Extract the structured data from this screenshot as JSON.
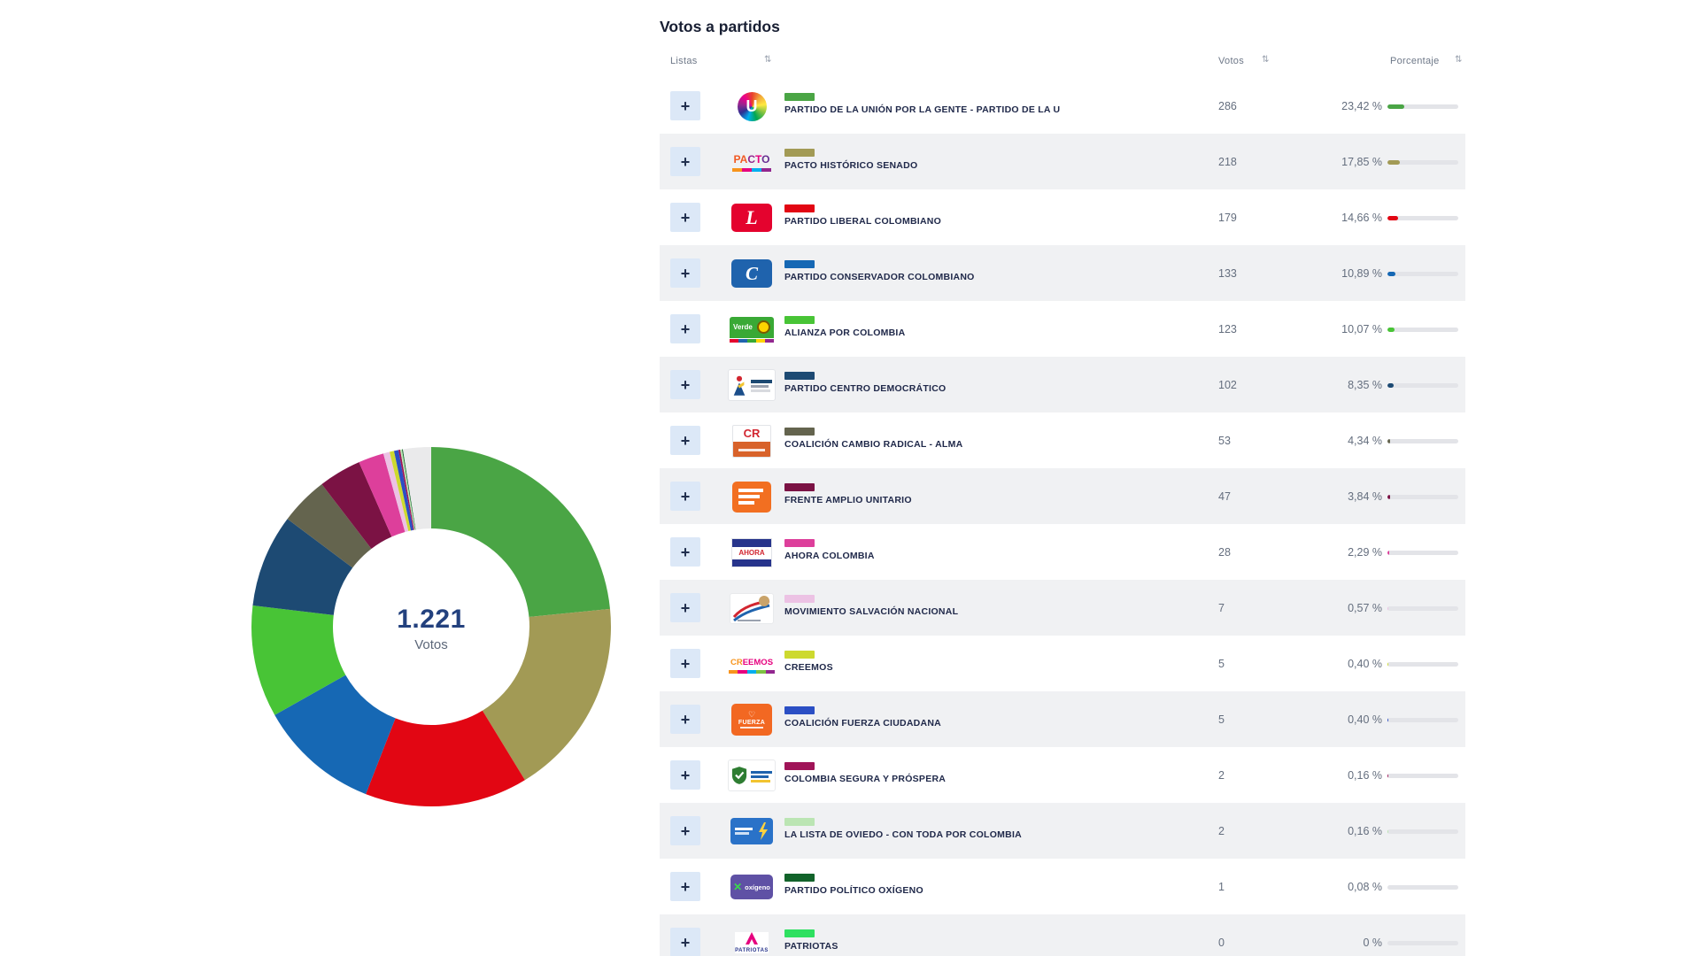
{
  "title": "Votos a partidos",
  "icons": {
    "sort": "⇅",
    "expand": "+"
  },
  "table": {
    "headers": {
      "listas": "Listas",
      "votos": "Votos",
      "porcentaje": "Porcentaje"
    },
    "rows": [
      {
        "name": "PARTIDO DE LA UNIÓN POR LA GENTE - PARTIDO DE LA U",
        "votes": "286",
        "pct": 23.42,
        "pct_label": "23,42 %",
        "color": "#4aa545",
        "logo": "u"
      },
      {
        "name": "PACTO HISTÓRICO SENADO",
        "votes": "218",
        "pct": 17.85,
        "pct_label": "17,85 %",
        "color": "#a29a55",
        "logo": "pacto"
      },
      {
        "name": "PARTIDO LIBERAL COLOMBIANO",
        "votes": "179",
        "pct": 14.66,
        "pct_label": "14,66 %",
        "color": "#e20613",
        "logo": "liberal"
      },
      {
        "name": "PARTIDO CONSERVADOR COLOMBIANO",
        "votes": "133",
        "pct": 10.89,
        "pct_label": "10,89 %",
        "color": "#1668b4",
        "logo": "conservador"
      },
      {
        "name": "ALIANZA POR COLOMBIA",
        "votes": "123",
        "pct": 10.07,
        "pct_label": "10,07 %",
        "color": "#48c436",
        "logo": "alianza"
      },
      {
        "name": "PARTIDO CENTRO DEMOCRÁTICO",
        "votes": "102",
        "pct": 8.35,
        "pct_label": "8,35 %",
        "color": "#1d4a73",
        "logo": "centro"
      },
      {
        "name": "COALICIÓN CAMBIO RADICAL - ALMA",
        "votes": "53",
        "pct": 4.34,
        "pct_label": "4,34 %",
        "color": "#64644e",
        "logo": "cr"
      },
      {
        "name": "FRENTE AMPLIO UNITARIO",
        "votes": "47",
        "pct": 3.84,
        "pct_label": "3,84 %",
        "color": "#7b1244",
        "logo": "frente"
      },
      {
        "name": "AHORA COLOMBIA",
        "votes": "28",
        "pct": 2.29,
        "pct_label": "2,29 %",
        "color": "#dd3f9b",
        "logo": "ahora"
      },
      {
        "name": "MOVIMIENTO SALVACIÓN NACIONAL",
        "votes": "7",
        "pct": 0.57,
        "pct_label": "0,57 %",
        "color": "#ecc2e4",
        "logo": "msn"
      },
      {
        "name": "CREEMOS",
        "votes": "5",
        "pct": 0.4,
        "pct_label": "0,40 %",
        "color": "#cdd92f",
        "logo": "creemos"
      },
      {
        "name": "COALICIÓN FUERZA CIUDADANA",
        "votes": "5",
        "pct": 0.4,
        "pct_label": "0,40 %",
        "color": "#2b4fc4",
        "logo": "fuerza"
      },
      {
        "name": "COLOMBIA SEGURA Y PRÓSPERA",
        "votes": "2",
        "pct": 0.16,
        "pct_label": "0,16 %",
        "color": "#a01458",
        "logo": "segura"
      },
      {
        "name": "LA LISTA DE OVIEDO - CON TODA POR COLOMBIA",
        "votes": "2",
        "pct": 0.16,
        "pct_label": "0,16 %",
        "color": "#bbe5b3",
        "logo": "oviedo"
      },
      {
        "name": "PARTIDO POLÍTICO OXÍGENO",
        "votes": "1",
        "pct": 0.08,
        "pct_label": "0,08 %",
        "color": "#12632a",
        "logo": "oxigeno"
      },
      {
        "name": "PATRIOTAS",
        "votes": "0",
        "pct": 0,
        "pct_label": "0 %",
        "color": "#2ee060",
        "logo": "patriotas"
      }
    ]
  },
  "chart": {
    "center_label": "1.221",
    "center_sublabel": "Votos"
  },
  "chart_data": {
    "type": "pie",
    "subtype": "donut",
    "title": "Votos a partidos",
    "center_label": "1.221",
    "center_sublabel": "Votos",
    "total_votes": 1221,
    "start_angle_deg": -90,
    "direction": "clockwise",
    "remainder_color": "#eaeaeb",
    "series": [
      {
        "name": "PARTIDO DE LA UNIÓN POR LA GENTE - PARTIDO DE LA U",
        "value": 286,
        "pct": 23.42,
        "color": "#4aa545"
      },
      {
        "name": "PACTO HISTÓRICO SENADO",
        "value": 218,
        "pct": 17.85,
        "color": "#a29a55"
      },
      {
        "name": "PARTIDO LIBERAL COLOMBIANO",
        "value": 179,
        "pct": 14.66,
        "color": "#e20613"
      },
      {
        "name": "PARTIDO CONSERVADOR COLOMBIANO",
        "value": 133,
        "pct": 10.89,
        "color": "#1668b4"
      },
      {
        "name": "ALIANZA POR COLOMBIA",
        "value": 123,
        "pct": 10.07,
        "color": "#48c436"
      },
      {
        "name": "PARTIDO CENTRO DEMOCRÁTICO",
        "value": 102,
        "pct": 8.35,
        "color": "#1d4a73"
      },
      {
        "name": "COALICIÓN CAMBIO RADICAL - ALMA",
        "value": 53,
        "pct": 4.34,
        "color": "#64644e"
      },
      {
        "name": "FRENTE AMPLIO UNITARIO",
        "value": 47,
        "pct": 3.84,
        "color": "#7b1244"
      },
      {
        "name": "AHORA COLOMBIA",
        "value": 28,
        "pct": 2.29,
        "color": "#dd3f9b"
      },
      {
        "name": "MOVIMIENTO SALVACIÓN NACIONAL",
        "value": 7,
        "pct": 0.57,
        "color": "#ecc2e4"
      },
      {
        "name": "CREEMOS",
        "value": 5,
        "pct": 0.4,
        "color": "#cdd92f"
      },
      {
        "name": "COALICIÓN FUERZA CIUDADANA",
        "value": 5,
        "pct": 0.4,
        "color": "#2b4fc4"
      },
      {
        "name": "COLOMBIA SEGURA Y PRÓSPERA",
        "value": 2,
        "pct": 0.16,
        "color": "#a01458"
      },
      {
        "name": "LA LISTA DE OVIEDO - CON TODA POR COLOMBIA",
        "value": 2,
        "pct": 0.16,
        "color": "#bbe5b3"
      },
      {
        "name": "PARTIDO POLÍTICO OXÍGENO",
        "value": 1,
        "pct": 0.08,
        "color": "#12632a"
      },
      {
        "name": "PATRIOTAS",
        "value": 0,
        "pct": 0,
        "color": "#2ee060"
      }
    ]
  }
}
